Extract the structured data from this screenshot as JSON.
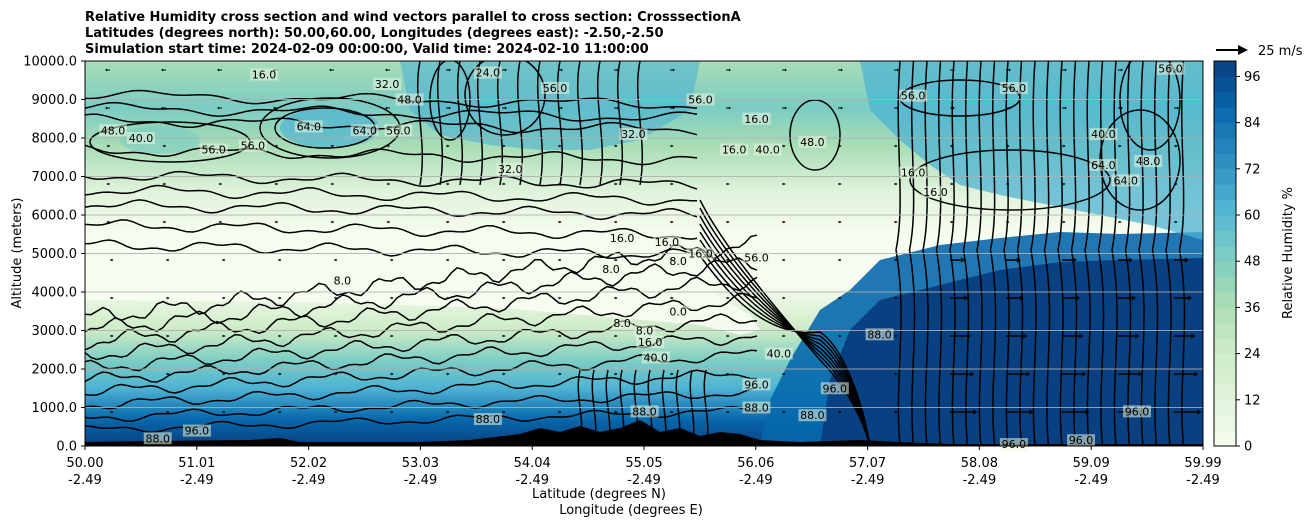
{
  "chart_data": {
    "type": "heatmap",
    "title_lines": [
      "Relative Humidity cross section and wind vectors parallel to cross section: CrosssectionA",
      "Latitudes (degrees north): 50.00,60.00, Longitudes (degrees east): -2.50,-2.50",
      "Simulation start time: 2024-02-09 00:00:00, Valid time: 2024-02-10 11:00:00"
    ],
    "ylabel": "Altitude (meters)",
    "xlabel_lines": [
      "Latitude (degrees N)",
      "Longitude (degrees E)"
    ],
    "ylim": [
      0,
      10000
    ],
    "xlim": [
      50.0,
      59.99
    ],
    "y_ticks": [
      "0.0",
      "1000.0",
      "2000.0",
      "3000.0",
      "4000.0",
      "5000.0",
      "6000.0",
      "7000.0",
      "8000.0",
      "9000.0",
      "10000.0"
    ],
    "y_tick_values": [
      0,
      1000,
      2000,
      3000,
      4000,
      5000,
      6000,
      7000,
      8000,
      9000,
      10000
    ],
    "x_ticks": [
      {
        "lat": "50.00",
        "lon": "-2.49"
      },
      {
        "lat": "51.01",
        "lon": "-2.49"
      },
      {
        "lat": "52.02",
        "lon": "-2.49"
      },
      {
        "lat": "53.03",
        "lon": "-2.49"
      },
      {
        "lat": "54.04",
        "lon": "-2.49"
      },
      {
        "lat": "55.05",
        "lon": "-2.49"
      },
      {
        "lat": "56.06",
        "lon": "-2.49"
      },
      {
        "lat": "57.07",
        "lon": "-2.49"
      },
      {
        "lat": "58.08",
        "lon": "-2.49"
      },
      {
        "lat": "59.09",
        "lon": "-2.49"
      },
      {
        "lat": "59.99",
        "lon": "-2.49"
      }
    ],
    "colorbar_label": "Relative Humidity %",
    "colorbar_range": [
      0,
      100
    ],
    "colorbar_ticks": [
      "0",
      "12",
      "24",
      "36",
      "48",
      "60",
      "72",
      "84",
      "96"
    ],
    "colorbar_tick_values": [
      0,
      12,
      24,
      36,
      48,
      60,
      72,
      84,
      96
    ],
    "colorbar_levels": 25,
    "colormap": [
      "#f7fcf0",
      "#e0f3db",
      "#ccebc5",
      "#a8ddb5",
      "#7bccc4",
      "#4eb3d3",
      "#2b8cbe",
      "#0868ac",
      "#084081"
    ],
    "quiver_key": "25 m/s",
    "grid": "horizontal",
    "contour_labels": [
      {
        "text": "16.0",
        "lat": 51.6,
        "alt": 9650
      },
      {
        "text": "32.0",
        "lat": 52.7,
        "alt": 9400
      },
      {
        "text": "48.0",
        "lat": 52.9,
        "alt": 9000
      },
      {
        "text": "64.0",
        "lat": 52.0,
        "alt": 8300
      },
      {
        "text": "64.0",
        "lat": 52.5,
        "alt": 8200
      },
      {
        "text": "56.0",
        "lat": 52.8,
        "alt": 8200
      },
      {
        "text": "48.0",
        "lat": 50.25,
        "alt": 8200
      },
      {
        "text": "40.0",
        "lat": 50.5,
        "alt": 8000
      },
      {
        "text": "56.0",
        "lat": 51.5,
        "alt": 7800
      },
      {
        "text": "56.0",
        "lat": 51.15,
        "alt": 7700
      },
      {
        "text": "56.0",
        "lat": 54.2,
        "alt": 9300
      },
      {
        "text": "56.0",
        "lat": 55.5,
        "alt": 9000
      },
      {
        "text": "56.0",
        "lat": 57.4,
        "alt": 9100
      },
      {
        "text": "56.0",
        "lat": 58.3,
        "alt": 9300
      },
      {
        "text": "56.0",
        "lat": 59.7,
        "alt": 9800
      },
      {
        "text": "48.0",
        "lat": 56.5,
        "alt": 7900
      },
      {
        "text": "40.0",
        "lat": 56.1,
        "alt": 7700
      },
      {
        "text": "32.0",
        "lat": 54.9,
        "alt": 8100
      },
      {
        "text": "32.0",
        "lat": 53.8,
        "alt": 7200
      },
      {
        "text": "24.0",
        "lat": 53.6,
        "alt": 9700
      },
      {
        "text": "16.0",
        "lat": 57.4,
        "alt": 7100
      },
      {
        "text": "16.0",
        "lat": 57.6,
        "alt": 6600
      },
      {
        "text": "16.0",
        "lat": 56.0,
        "alt": 8500
      },
      {
        "text": "16.0",
        "lat": 55.8,
        "alt": 7700
      },
      {
        "text": "16.0",
        "lat": 54.8,
        "alt": 5400
      },
      {
        "text": "16.0",
        "lat": 55.2,
        "alt": 5300
      },
      {
        "text": "16.0",
        "lat": 55.5,
        "alt": 5000
      },
      {
        "text": "8.0",
        "lat": 54.7,
        "alt": 4600
      },
      {
        "text": "8.0",
        "lat": 55.3,
        "alt": 4800
      },
      {
        "text": "8.0",
        "lat": 52.3,
        "alt": 4300
      },
      {
        "text": "8.0",
        "lat": 54.8,
        "alt": 3200
      },
      {
        "text": "8.0",
        "lat": 55.0,
        "alt": 3000
      },
      {
        "text": "0.0",
        "lat": 55.3,
        "alt": 3500
      },
      {
        "text": "16.0",
        "lat": 55.05,
        "alt": 2700
      },
      {
        "text": "40.0",
        "lat": 56.2,
        "alt": 2400
      },
      {
        "text": "40.0",
        "lat": 55.1,
        "alt": 2300
      },
      {
        "text": "56.0",
        "lat": 56.0,
        "alt": 4900
      },
      {
        "text": "64.0",
        "lat": 59.1,
        "alt": 7300
      },
      {
        "text": "64.0",
        "lat": 59.3,
        "alt": 6900
      },
      {
        "text": "48.0",
        "lat": 59.5,
        "alt": 7400
      },
      {
        "text": "40.0",
        "lat": 59.1,
        "alt": 8100
      },
      {
        "text": "88.0",
        "lat": 57.1,
        "alt": 2900
      },
      {
        "text": "96.0",
        "lat": 56.0,
        "alt": 1600
      },
      {
        "text": "96.0",
        "lat": 56.7,
        "alt": 1500
      },
      {
        "text": "96.0",
        "lat": 51.0,
        "alt": 400
      },
      {
        "text": "96.0",
        "lat": 59.4,
        "alt": 900
      },
      {
        "text": "96.0",
        "lat": 58.3,
        "alt": 50
      },
      {
        "text": "96.0",
        "lat": 58.9,
        "alt": 150
      },
      {
        "text": "88.0",
        "lat": 50.65,
        "alt": 200
      },
      {
        "text": "88.0",
        "lat": 56.0,
        "alt": 1000
      },
      {
        "text": "88.0",
        "lat": 56.5,
        "alt": 800
      },
      {
        "text": "88.0",
        "lat": 53.6,
        "alt": 700
      },
      {
        "text": "88.0",
        "lat": 55.0,
        "alt": 900
      }
    ]
  }
}
